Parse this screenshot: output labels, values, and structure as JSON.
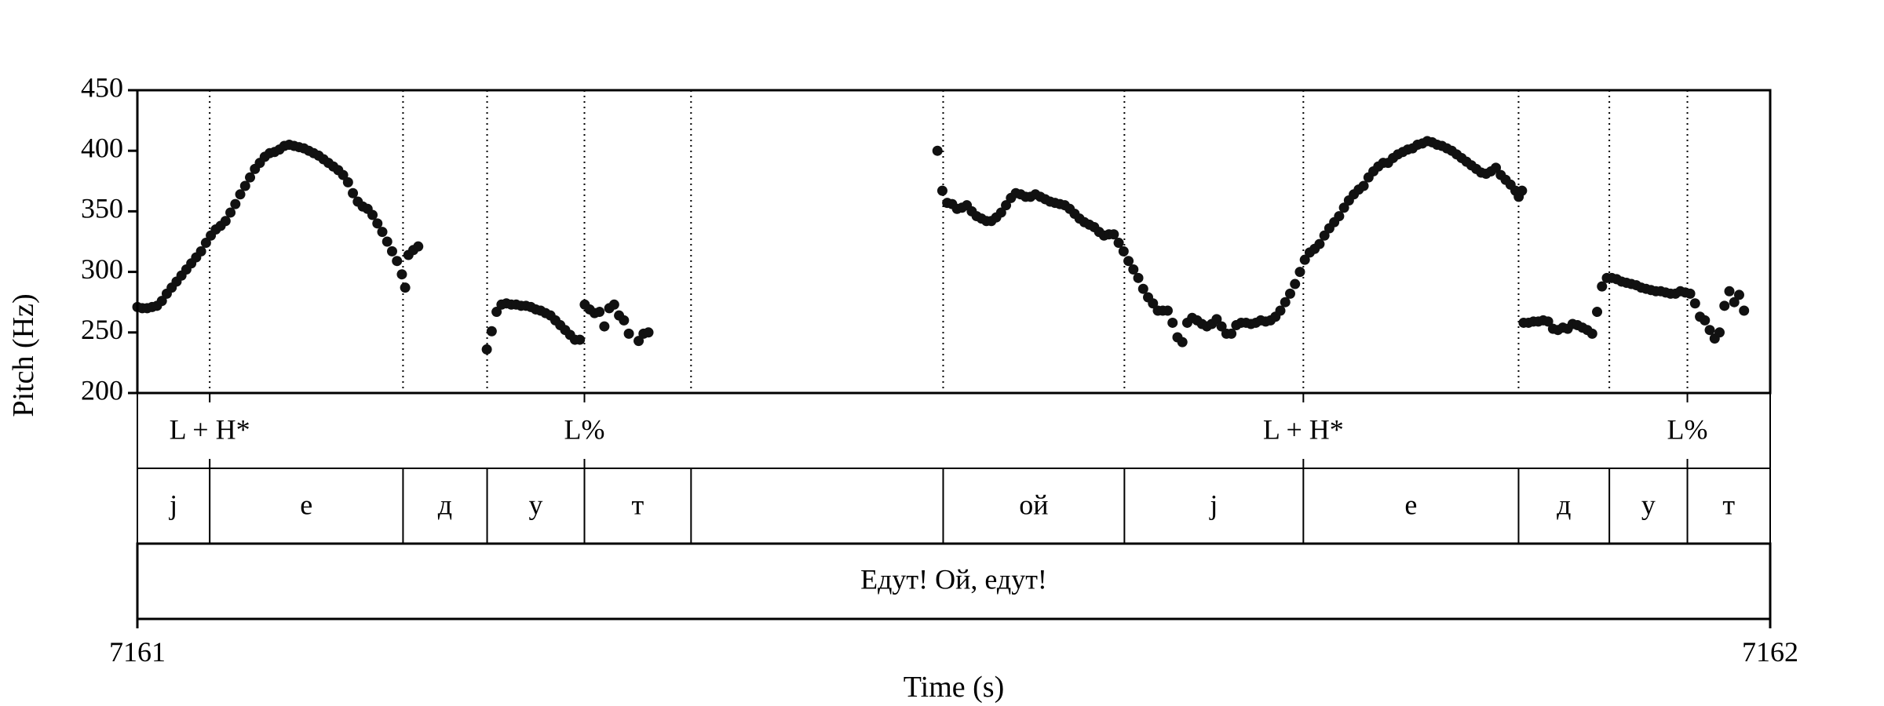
{
  "chart_data": {
    "type": "scatter",
    "xlabel": "Time (s)",
    "ylabel": "Pitch (Hz)",
    "xlim": [
      7161,
      7162
    ],
    "ylim": [
      200,
      450
    ],
    "x_ticks": [
      "7161",
      "7162"
    ],
    "y_ticks": [
      "200",
      "250",
      "300",
      "350",
      "400",
      "450"
    ],
    "marker_color": "#111111",
    "boundary_style": "dotted",
    "boundaries": [
      7161.0443,
      7161.1627,
      7161.2142,
      7161.2738,
      7161.3391,
      7161.4935,
      7161.6045,
      7161.7141,
      7161.8459,
      7161.9015,
      7161.9493
    ],
    "tones": [
      {
        "label": "L + H*",
        "time": 7161.0443
      },
      {
        "label": "L%",
        "time": 7161.2738
      },
      {
        "label": "L + H*",
        "time": 7161.7141
      },
      {
        "label": "L%",
        "time": 7161.9493
      }
    ],
    "segments": [
      {
        "label": "j",
        "start": 7161.0,
        "end": 7161.0443
      },
      {
        "label": "е",
        "start": 7161.0443,
        "end": 7161.1627
      },
      {
        "label": "д",
        "start": 7161.1627,
        "end": 7161.2142
      },
      {
        "label": "у",
        "start": 7161.2142,
        "end": 7161.2738
      },
      {
        "label": "т",
        "start": 7161.2738,
        "end": 7161.3391
      },
      {
        "label": "",
        "start": 7161.3391,
        "end": 7161.4935
      },
      {
        "label": "ой",
        "start": 7161.4935,
        "end": 7161.6045
      },
      {
        "label": "j",
        "start": 7161.6045,
        "end": 7161.7141
      },
      {
        "label": "е",
        "start": 7161.7141,
        "end": 7161.8459
      },
      {
        "label": "д",
        "start": 7161.8459,
        "end": 7161.9015
      },
      {
        "label": "у",
        "start": 7161.9015,
        "end": 7161.9493
      },
      {
        "label": "т",
        "start": 7161.9493,
        "end": 7162.0
      }
    ],
    "utterance": "Едут! Ой, едут!",
    "series": [
      {
        "points": [
          [
            7161.0,
            271
          ],
          [
            7161.003,
            270
          ],
          [
            7161.006,
            270
          ],
          [
            7161.009,
            271
          ],
          [
            7161.012,
            272
          ],
          [
            7161.015,
            276
          ],
          [
            7161.018,
            282
          ],
          [
            7161.021,
            287
          ],
          [
            7161.024,
            292
          ],
          [
            7161.027,
            297
          ],
          [
            7161.03,
            302
          ],
          [
            7161.033,
            307
          ],
          [
            7161.036,
            312
          ],
          [
            7161.039,
            317
          ],
          [
            7161.042,
            324
          ],
          [
            7161.045,
            330
          ],
          [
            7161.048,
            335
          ],
          [
            7161.051,
            338
          ],
          [
            7161.054,
            342
          ],
          [
            7161.057,
            349
          ],
          [
            7161.06,
            356
          ],
          [
            7161.063,
            364
          ],
          [
            7161.066,
            371
          ],
          [
            7161.069,
            378
          ],
          [
            7161.072,
            385
          ],
          [
            7161.075,
            390
          ],
          [
            7161.078,
            395
          ],
          [
            7161.081,
            398
          ],
          [
            7161.084,
            399
          ],
          [
            7161.087,
            401
          ],
          [
            7161.09,
            404
          ],
          [
            7161.093,
            405
          ],
          [
            7161.096,
            404
          ],
          [
            7161.099,
            403
          ],
          [
            7161.102,
            402
          ],
          [
            7161.105,
            400
          ],
          [
            7161.108,
            398
          ],
          [
            7161.111,
            396
          ],
          [
            7161.114,
            393
          ],
          [
            7161.117,
            390
          ],
          [
            7161.12,
            387
          ],
          [
            7161.123,
            384
          ],
          [
            7161.126,
            380
          ],
          [
            7161.129,
            374
          ],
          [
            7161.132,
            365
          ],
          [
            7161.135,
            358
          ],
          [
            7161.138,
            354
          ],
          [
            7161.141,
            352
          ],
          [
            7161.144,
            347
          ],
          [
            7161.147,
            340
          ],
          [
            7161.15,
            333
          ],
          [
            7161.153,
            325
          ],
          [
            7161.156,
            317
          ],
          [
            7161.159,
            309
          ],
          [
            7161.162,
            298
          ],
          [
            7161.164,
            287
          ],
          [
            7161.166,
            314
          ],
          [
            7161.169,
            318
          ],
          [
            7161.172,
            321
          ]
        ]
      },
      {
        "points": [
          [
            7161.214,
            236
          ],
          [
            7161.217,
            251
          ],
          [
            7161.22,
            267
          ],
          [
            7161.223,
            273
          ],
          [
            7161.226,
            274
          ],
          [
            7161.229,
            273
          ],
          [
            7161.232,
            273
          ],
          [
            7161.235,
            272
          ],
          [
            7161.238,
            272
          ],
          [
            7161.241,
            271
          ],
          [
            7161.244,
            269
          ],
          [
            7161.247,
            268
          ],
          [
            7161.25,
            266
          ],
          [
            7161.253,
            264
          ],
          [
            7161.256,
            260
          ],
          [
            7161.259,
            256
          ],
          [
            7161.262,
            252
          ],
          [
            7161.265,
            248
          ],
          [
            7161.268,
            244
          ],
          [
            7161.271,
            244
          ],
          [
            7161.274,
            273
          ],
          [
            7161.277,
            269
          ],
          [
            7161.28,
            266
          ],
          [
            7161.283,
            267
          ],
          [
            7161.286,
            255
          ],
          [
            7161.289,
            270
          ],
          [
            7161.292,
            273
          ],
          [
            7161.295,
            264
          ],
          [
            7161.298,
            260
          ],
          [
            7161.301,
            249
          ],
          [
            7161.307,
            243
          ],
          [
            7161.31,
            249
          ],
          [
            7161.313,
            250
          ]
        ]
      },
      {
        "points": [
          [
            7161.49,
            400
          ],
          [
            7161.493,
            367
          ],
          [
            7161.496,
            357
          ],
          [
            7161.499,
            356
          ],
          [
            7161.502,
            352
          ],
          [
            7161.505,
            353
          ],
          [
            7161.508,
            355
          ],
          [
            7161.511,
            350
          ],
          [
            7161.514,
            346
          ],
          [
            7161.517,
            344
          ],
          [
            7161.52,
            342
          ],
          [
            7161.523,
            342
          ],
          [
            7161.526,
            345
          ],
          [
            7161.529,
            349
          ],
          [
            7161.532,
            355
          ],
          [
            7161.535,
            361
          ],
          [
            7161.538,
            365
          ],
          [
            7161.541,
            364
          ],
          [
            7161.544,
            362
          ],
          [
            7161.547,
            362
          ],
          [
            7161.55,
            364
          ],
          [
            7161.553,
            362
          ],
          [
            7161.556,
            360
          ],
          [
            7161.559,
            358
          ],
          [
            7161.562,
            357
          ],
          [
            7161.565,
            356
          ],
          [
            7161.568,
            355
          ],
          [
            7161.571,
            352
          ],
          [
            7161.574,
            348
          ],
          [
            7161.577,
            344
          ],
          [
            7161.58,
            341
          ],
          [
            7161.583,
            339
          ],
          [
            7161.586,
            337
          ],
          [
            7161.589,
            333
          ],
          [
            7161.592,
            330
          ],
          [
            7161.595,
            331
          ],
          [
            7161.598,
            331
          ],
          [
            7161.601,
            324
          ],
          [
            7161.604,
            317
          ],
          [
            7161.607,
            309
          ],
          [
            7161.61,
            302
          ],
          [
            7161.613,
            295
          ],
          [
            7161.616,
            286
          ],
          [
            7161.619,
            279
          ],
          [
            7161.622,
            274
          ],
          [
            7161.625,
            268
          ],
          [
            7161.628,
            268
          ],
          [
            7161.631,
            268
          ],
          [
            7161.634,
            258
          ],
          [
            7161.637,
            246
          ],
          [
            7161.64,
            242
          ],
          [
            7161.643,
            258
          ],
          [
            7161.646,
            262
          ],
          [
            7161.649,
            260
          ],
          [
            7161.652,
            257
          ],
          [
            7161.655,
            255
          ],
          [
            7161.658,
            257
          ],
          [
            7161.661,
            261
          ],
          [
            7161.664,
            255
          ],
          [
            7161.667,
            249
          ],
          [
            7161.67,
            249
          ],
          [
            7161.673,
            256
          ],
          [
            7161.676,
            258
          ],
          [
            7161.679,
            258
          ],
          [
            7161.682,
            257
          ],
          [
            7161.685,
            258
          ],
          [
            7161.688,
            260
          ],
          [
            7161.691,
            259
          ],
          [
            7161.694,
            260
          ],
          [
            7161.697,
            263
          ],
          [
            7161.7,
            268
          ],
          [
            7161.703,
            275
          ],
          [
            7161.706,
            282
          ],
          [
            7161.709,
            290
          ],
          [
            7161.712,
            300
          ],
          [
            7161.715,
            310
          ],
          [
            7161.718,
            316
          ],
          [
            7161.721,
            319
          ],
          [
            7161.724,
            323
          ],
          [
            7161.727,
            330
          ],
          [
            7161.73,
            336
          ],
          [
            7161.733,
            341
          ],
          [
            7161.736,
            346
          ],
          [
            7161.739,
            353
          ],
          [
            7161.742,
            359
          ],
          [
            7161.745,
            364
          ],
          [
            7161.748,
            368
          ],
          [
            7161.751,
            371
          ],
          [
            7161.754,
            378
          ],
          [
            7161.757,
            383
          ],
          [
            7161.76,
            387
          ],
          [
            7161.763,
            390
          ],
          [
            7161.766,
            390
          ],
          [
            7161.769,
            394
          ],
          [
            7161.772,
            397
          ],
          [
            7161.775,
            399
          ],
          [
            7161.778,
            401
          ],
          [
            7161.781,
            402
          ],
          [
            7161.784,
            405
          ],
          [
            7161.787,
            406
          ],
          [
            7161.79,
            408
          ],
          [
            7161.793,
            407
          ],
          [
            7161.796,
            405
          ],
          [
            7161.799,
            404
          ],
          [
            7161.802,
            402
          ],
          [
            7161.805,
            400
          ],
          [
            7161.808,
            397
          ],
          [
            7161.811,
            394
          ],
          [
            7161.814,
            391
          ],
          [
            7161.817,
            388
          ],
          [
            7161.82,
            385
          ],
          [
            7161.823,
            382
          ],
          [
            7161.826,
            381
          ],
          [
            7161.829,
            383
          ],
          [
            7161.832,
            386
          ],
          [
            7161.835,
            380
          ],
          [
            7161.838,
            376
          ],
          [
            7161.841,
            372
          ],
          [
            7161.844,
            367
          ],
          [
            7161.846,
            362
          ],
          [
            7161.848,
            367
          ]
        ]
      },
      {
        "points": [
          [
            7161.849,
            258
          ],
          [
            7161.852,
            258
          ],
          [
            7161.855,
            259
          ],
          [
            7161.858,
            259
          ],
          [
            7161.861,
            260
          ],
          [
            7161.864,
            259
          ],
          [
            7161.867,
            253
          ],
          [
            7161.87,
            252
          ],
          [
            7161.873,
            254
          ],
          [
            7161.876,
            253
          ],
          [
            7161.879,
            257
          ],
          [
            7161.882,
            256
          ],
          [
            7161.885,
            254
          ],
          [
            7161.888,
            252
          ],
          [
            7161.891,
            249
          ],
          [
            7161.894,
            267
          ],
          [
            7161.897,
            288
          ],
          [
            7161.9,
            295
          ],
          [
            7161.903,
            295
          ],
          [
            7161.906,
            294
          ],
          [
            7161.909,
            292
          ],
          [
            7161.912,
            291
          ],
          [
            7161.915,
            290
          ],
          [
            7161.918,
            289
          ],
          [
            7161.921,
            287
          ],
          [
            7161.924,
            286
          ],
          [
            7161.927,
            285
          ],
          [
            7161.93,
            284
          ],
          [
            7161.933,
            284
          ],
          [
            7161.936,
            283
          ],
          [
            7161.939,
            282
          ],
          [
            7161.942,
            282
          ],
          [
            7161.945,
            284
          ],
          [
            7161.948,
            283
          ],
          [
            7161.951,
            282
          ],
          [
            7161.954,
            274
          ],
          [
            7161.957,
            263
          ],
          [
            7161.96,
            260
          ],
          [
            7161.963,
            252
          ],
          [
            7161.966,
            245
          ],
          [
            7161.969,
            250
          ],
          [
            7161.972,
            272
          ],
          [
            7161.975,
            284
          ],
          [
            7161.978,
            275
          ],
          [
            7161.981,
            281
          ],
          [
            7161.984,
            268
          ]
        ]
      }
    ]
  }
}
